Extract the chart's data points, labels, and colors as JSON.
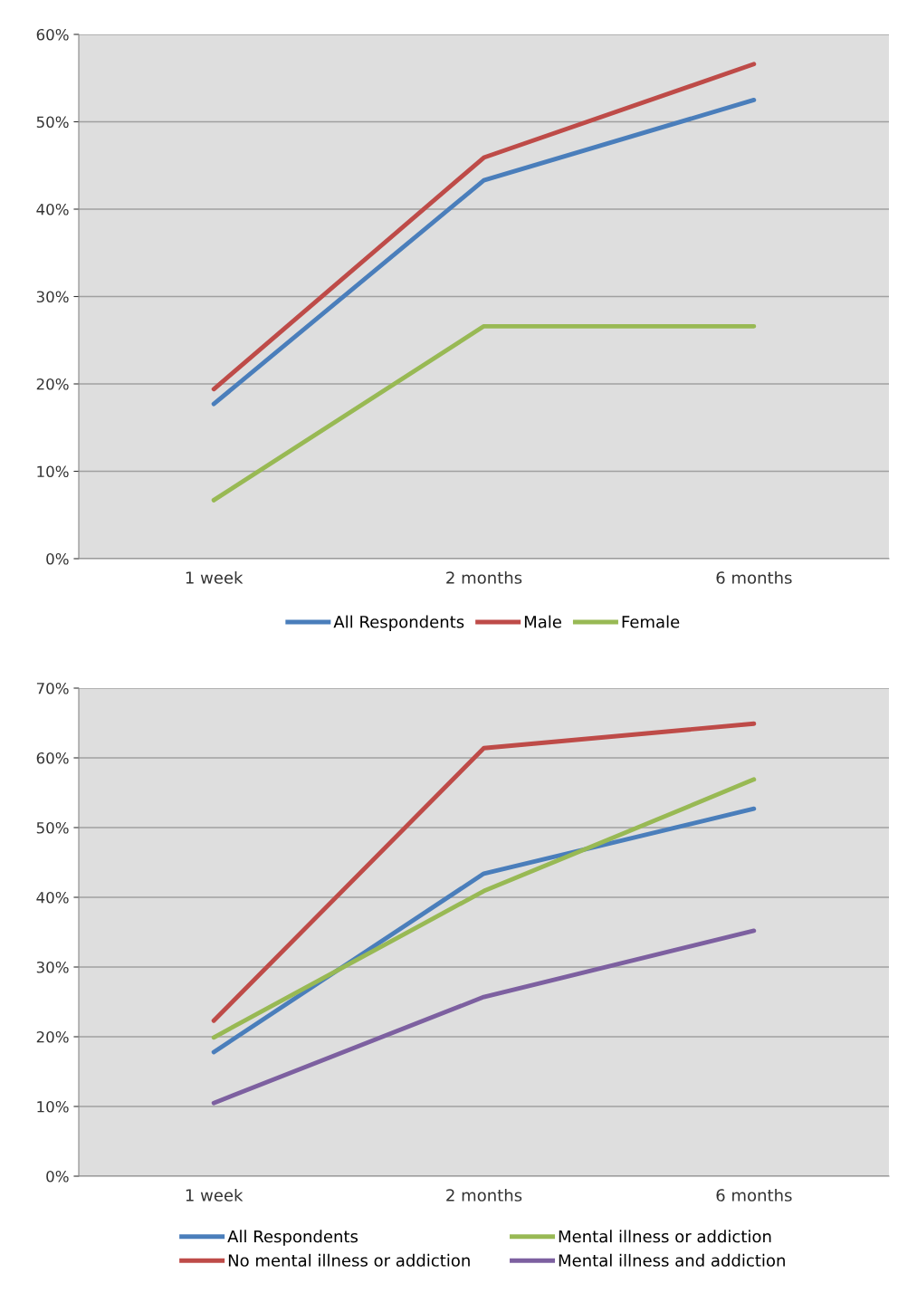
{
  "chart_data": [
    {
      "type": "line",
      "categories": [
        "1 week",
        "2 months",
        "6 months"
      ],
      "series": [
        {
          "name": "All Respondents",
          "color": "#4a7ebb",
          "values": [
            17.7,
            43.3,
            52.5
          ]
        },
        {
          "name": "Male",
          "color": "#be4b48",
          "values": [
            19.4,
            45.9,
            56.6
          ]
        },
        {
          "name": "Female",
          "color": "#98b954",
          "values": [
            6.7,
            26.6,
            26.6
          ]
        }
      ],
      "ylim": [
        0,
        60
      ],
      "yticks": [
        {
          "value": 0,
          "label": "0%"
        },
        {
          "value": 10,
          "label": "10%"
        },
        {
          "value": 20,
          "label": "20%"
        },
        {
          "value": 30,
          "label": "30%"
        },
        {
          "value": 40,
          "label": "40%"
        },
        {
          "value": 50,
          "label": "50%"
        },
        {
          "value": 60,
          "label": "60%"
        }
      ],
      "grid": "y",
      "legend": "bottom",
      "marker": "none",
      "line_style": "solid"
    },
    {
      "type": "line",
      "categories": [
        "1 week",
        "2 months",
        "6 months"
      ],
      "series": [
        {
          "name": "All Respondents",
          "color": "#4a7ebb",
          "values": [
            17.8,
            43.4,
            52.7
          ]
        },
        {
          "name": "No mental illness or addiction",
          "color": "#be4b48",
          "values": [
            22.3,
            61.4,
            64.9
          ]
        },
        {
          "name": "Mental illness or addiction",
          "color": "#98b954",
          "values": [
            19.9,
            40.9,
            56.9
          ]
        },
        {
          "name": "Mental illness and addiction",
          "color": "#7d60a0",
          "values": [
            10.5,
            25.7,
            35.2
          ]
        }
      ],
      "ylim": [
        0,
        70
      ],
      "yticks": [
        {
          "value": 0,
          "label": "0%"
        },
        {
          "value": 10,
          "label": "10%"
        },
        {
          "value": 20,
          "label": "20%"
        },
        {
          "value": 30,
          "label": "30%"
        },
        {
          "value": 40,
          "label": "40%"
        },
        {
          "value": 50,
          "label": "50%"
        },
        {
          "value": 60,
          "label": "60%"
        },
        {
          "value": 70,
          "label": "70%"
        }
      ],
      "grid": "y",
      "legend": "bottom",
      "marker": "none",
      "line_style": "solid"
    }
  ]
}
